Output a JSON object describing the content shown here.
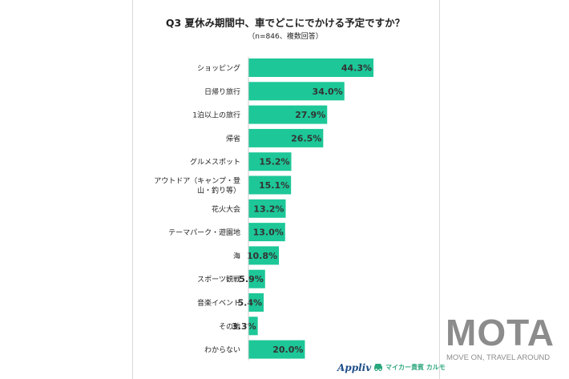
{
  "chart_data": {
    "type": "bar",
    "orientation": "horizontal",
    "title": "Q3 夏休み期間中、車でどこにでかける予定ですか？",
    "subtitle": "（n=846、複数回答）",
    "categories": [
      [
        "ショッピング"
      ],
      [
        "日帰り旅行"
      ],
      [
        "1泊以上の旅行"
      ],
      [
        "帰省"
      ],
      [
        "グルメスポット"
      ],
      [
        "アウトドア（キャンプ・登",
        "山・釣り等）"
      ],
      [
        "花火大会"
      ],
      [
        "テーマパーク・遊園地"
      ],
      [
        "海"
      ],
      [
        "スポーツ観戦"
      ],
      [
        "音楽イベント"
      ],
      [
        "その他"
      ],
      [
        "わからない"
      ]
    ],
    "values": [
      44.3,
      34.0,
      27.9,
      26.5,
      15.2,
      15.1,
      13.2,
      13.0,
      10.8,
      5.9,
      5.4,
      3.3,
      20.0
    ],
    "value_labels": [
      "44.3%",
      "34.0%",
      "27.9%",
      "26.5%",
      "15.2%",
      "15.1%",
      "13.2%",
      "13.0%",
      "10.8%",
      "5.9%",
      "5.4%",
      "3.3%",
      "20.0%"
    ],
    "xlim": [
      0,
      50
    ],
    "bar_color": "#1dc798",
    "grid": false,
    "legend": "none"
  },
  "branding": {
    "applivlogo": "Appliv",
    "mycar_logo": "マイカー貴賓 カルモ",
    "mota_logo": "MOTA",
    "mota_tagline": "MOVE ON, TRAVEL AROUND"
  }
}
